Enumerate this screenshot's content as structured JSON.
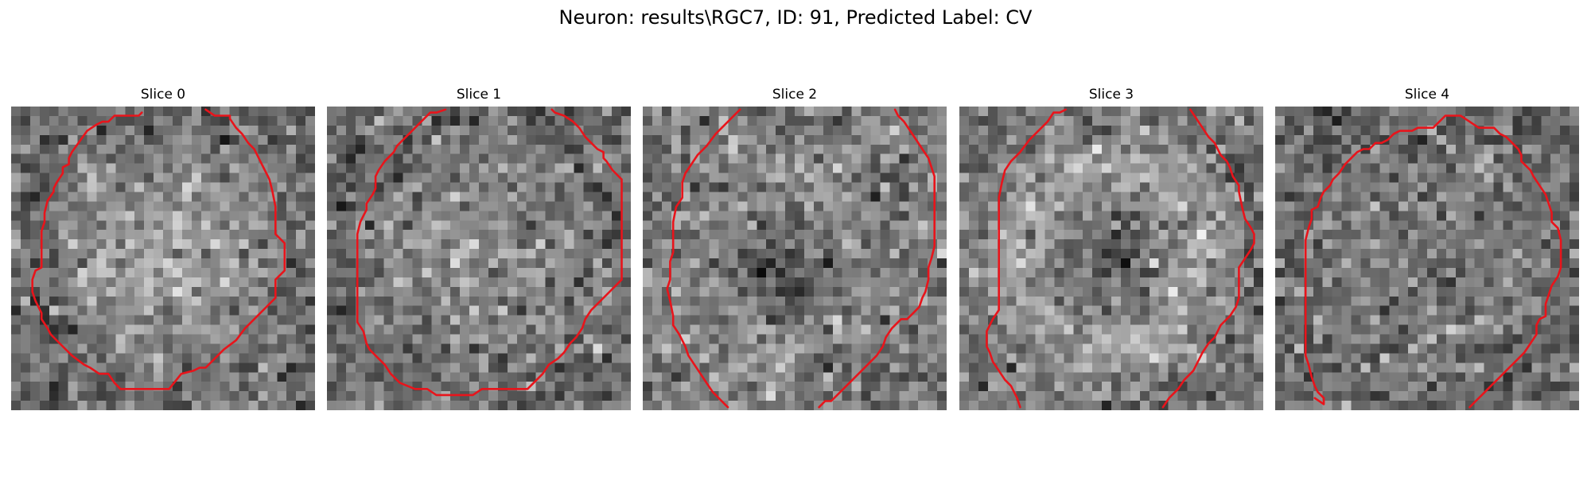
{
  "figure": {
    "title": "Neuron: results\\RGC7, ID: 91, Predicted Label: CV"
  },
  "colors": {
    "contour": "#e8141b",
    "background": "#ffffff",
    "text": "#000000"
  },
  "panels": [
    {
      "title": "Slice 0"
    },
    {
      "title": "Slice 1"
    },
    {
      "title": "Slice 2"
    },
    {
      "title": "Slice 3"
    },
    {
      "title": "Slice 4"
    }
  ]
}
